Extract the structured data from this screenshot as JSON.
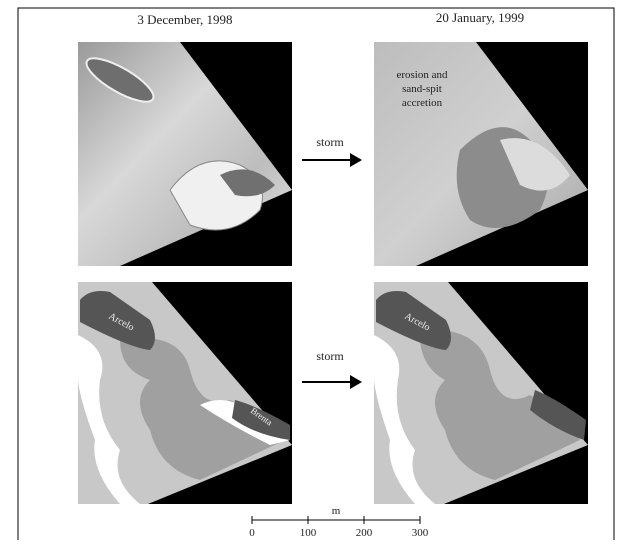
{
  "figure": {
    "dates": [
      "3 December, 1998",
      "20 January, 1999"
    ],
    "annotation": [
      "erosion and",
      "sand-spit",
      "accretion"
    ],
    "arrows": [
      "storm",
      "storm"
    ],
    "map_labels": {
      "left": [
        "Arcelo",
        "Brenta"
      ],
      "right": [
        "Arcelo"
      ]
    },
    "scale": {
      "unit": "m",
      "ticks": [
        0,
        100,
        200,
        300
      ]
    }
  }
}
